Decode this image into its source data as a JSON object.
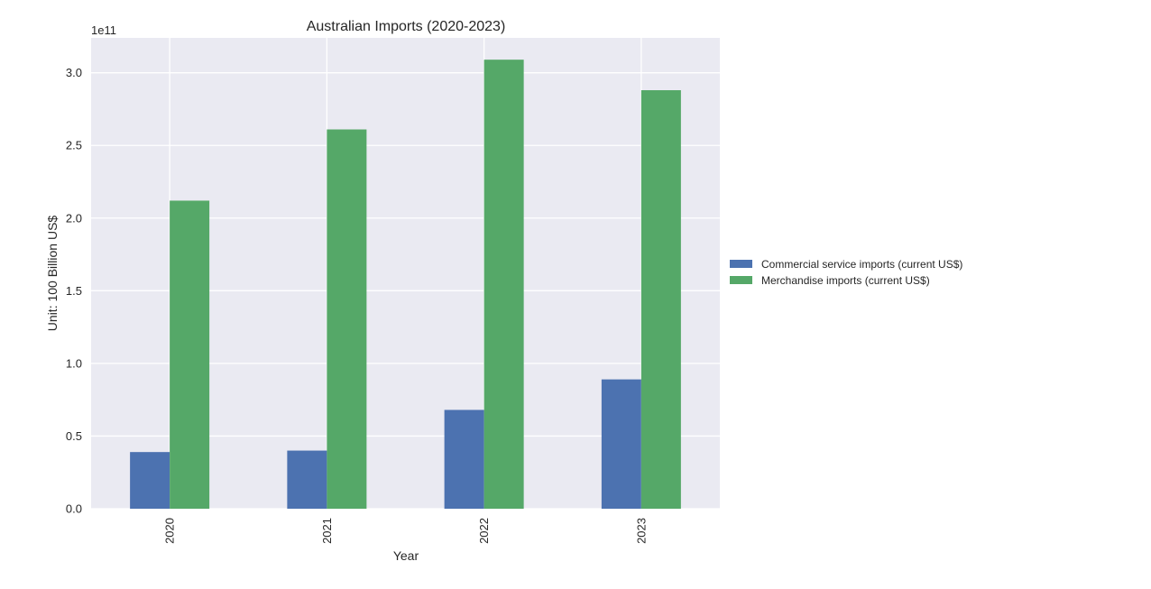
{
  "chart_data": {
    "type": "bar",
    "title": "Australian Imports (2020-2023)",
    "xlabel": "Year",
    "ylabel": "Unit: 100 Billion US$",
    "offset_text": "1e11",
    "categories": [
      "2020",
      "2021",
      "2022",
      "2023"
    ],
    "series": [
      {
        "name": "Commercial service imports (current US$)",
        "color": "#4c72b0",
        "values": [
          39000000000,
          40000000000,
          68000000000,
          89000000000
        ]
      },
      {
        "name": "Merchandise imports (current US$)",
        "color": "#55a868",
        "values": [
          212000000000,
          261000000000,
          309000000000,
          288000000000
        ]
      }
    ],
    "ylim": [
      0,
      324000000000
    ],
    "yticks": [
      {
        "value": 0,
        "label": "0.0"
      },
      {
        "value": 50000000000,
        "label": "0.5"
      },
      {
        "value": 100000000000,
        "label": "1.0"
      },
      {
        "value": 150000000000,
        "label": "1.5"
      },
      {
        "value": 200000000000,
        "label": "2.0"
      },
      {
        "value": 250000000000,
        "label": "2.5"
      },
      {
        "value": 300000000000,
        "label": "3.0"
      }
    ],
    "grid": true,
    "legend_position": "outside-right",
    "background_color": "#eaeaf2",
    "grid_color": "#ffffff"
  }
}
